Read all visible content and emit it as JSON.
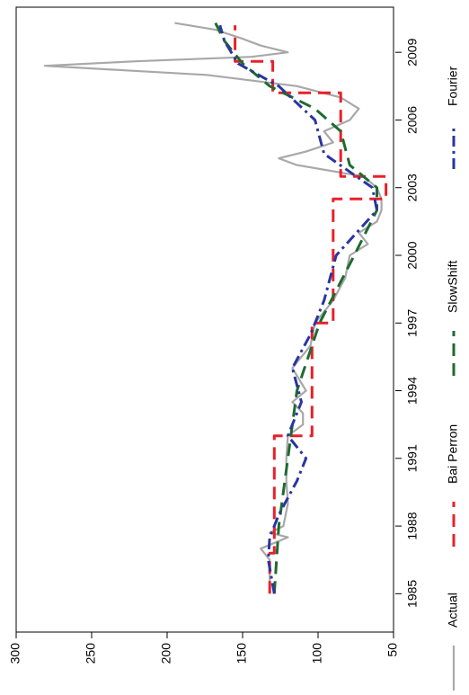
{
  "chart_data": {
    "type": "line",
    "xlim": [
      1983.3,
      2011
    ],
    "xticks": [
      1985,
      1988,
      1991,
      1994,
      1997,
      2000,
      2003,
      2006,
      2009
    ],
    "ylim": [
      50,
      300
    ],
    "yticks": [
      50,
      100,
      150,
      200,
      250,
      300
    ],
    "series": [
      {
        "name": "Actual",
        "color": "#a8a8a8",
        "linestyle": "solid",
        "x": [
          1985,
          1986.5,
          1987,
          1987.5,
          1987.7,
          1988,
          1989,
          1990,
          1991,
          1992,
          1992.5,
          1993,
          1993.5,
          1994,
          1995,
          1996,
          1997,
          1998,
          1999,
          2000,
          2000.5,
          2001,
          2001.5,
          2002,
          2002.5,
          2003,
          2003.5,
          2004,
          2004.3,
          2004.6,
          2005,
          2005.5,
          2006,
          2006.5,
          2007,
          2007.5,
          2008,
          2008.2,
          2008.4,
          2008.6,
          2008.8,
          2009,
          2009.3,
          2009.6,
          2010,
          2010.3
        ],
        "values": [
          132,
          132,
          138,
          120,
          132,
          123,
          120,
          121,
          121,
          120,
          110,
          110,
          117,
          108,
          117,
          105,
          102,
          90,
          82,
          79,
          67,
          73,
          61,
          58,
          58,
          61,
          70,
          114,
          126,
          108,
          90,
          96,
          79,
          73,
          85,
          114,
          174,
          227,
          281,
          221,
          144,
          120,
          138,
          150,
          168,
          195
        ]
      },
      {
        "name": "Bai Perron",
        "color": "#e8202a",
        "linestyle": "dashed",
        "x": [
          1985,
          1986.8,
          1986.8,
          1992,
          1992,
          1997,
          1997,
          2002.5,
          2002.5,
          2003.5,
          2003.5,
          2007.2,
          2007.2,
          2008.6,
          2008.6,
          2010.2
        ],
        "values": [
          132,
          132,
          129,
          129,
          104,
          104,
          90,
          90,
          55,
          55,
          85,
          85,
          130,
          130,
          155,
          155
        ]
      },
      {
        "name": "SlowShift",
        "color": "#1e6b30",
        "linestyle": "dashed",
        "x": [
          1985,
          1988,
          1991,
          1994,
          1997,
          2000,
          2002,
          2003,
          2004,
          2005.5,
          2006.5,
          2007.5,
          2008.5,
          2009.5,
          2010.3
        ],
        "values": [
          129,
          126,
          120,
          114,
          99,
          76,
          61,
          61,
          79,
          85,
          102,
          132,
          150,
          162,
          168
        ]
      },
      {
        "name": "Fourier",
        "color": "#2a35a0",
        "linestyle": "dashdot",
        "x": [
          1985,
          1986.5,
          1987.5,
          1988.5,
          1990,
          1991,
          1992,
          1993.5,
          1995,
          1996.5,
          1998,
          2000,
          2002,
          2003,
          2004.5,
          2006,
          2007.5,
          2008.5,
          2009.5,
          2010.2
        ],
        "values": [
          129,
          133,
          132,
          126,
          114,
          108,
          120,
          111,
          117,
          105,
          96,
          88,
          61,
          64,
          96,
          102,
          126,
          153,
          162,
          165
        ]
      }
    ]
  }
}
